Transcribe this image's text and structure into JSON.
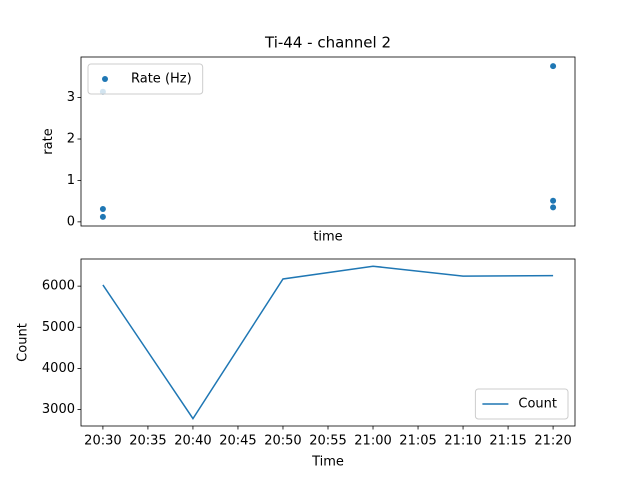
{
  "chart_data": [
    {
      "type": "scatter",
      "title": "Ti-44 - channel 2",
      "xlabel": "time",
      "ylabel": "rate",
      "x": [
        "20:30",
        "20:30",
        "20:30",
        "21:20",
        "21:20",
        "21:20"
      ],
      "series": [
        {
          "name": "Rate (Hz)",
          "color": "#1f77b4",
          "values": [
            3.14,
            0.31,
            0.12,
            3.76,
            0.51,
            0.35
          ]
        }
      ],
      "xlim": [
        "20:27:34",
        "21:22:26"
      ],
      "ylim": [
        -0.1,
        3.98
      ],
      "yticks": [
        0,
        1,
        2,
        3
      ],
      "legend": "upper left"
    },
    {
      "type": "line",
      "xlabel": "Time",
      "ylabel": "Count",
      "x": [
        "20:30",
        "20:40",
        "20:50",
        "21:00",
        "21:10",
        "21:20"
      ],
      "series": [
        {
          "name": "Count",
          "color": "#1f77b4",
          "values": [
            6030,
            2780,
            6175,
            6485,
            6245,
            6255
          ]
        }
      ],
      "xlim": [
        "20:27:34",
        "21:22:26"
      ],
      "ylim": [
        2600,
        6660
      ],
      "xticks": [
        "20:30",
        "20:35",
        "20:40",
        "20:45",
        "20:50",
        "20:55",
        "21:00",
        "21:05",
        "21:10",
        "21:15",
        "21:20"
      ],
      "yticks": [
        3000,
        4000,
        5000,
        6000
      ],
      "legend": "lower right"
    }
  ]
}
